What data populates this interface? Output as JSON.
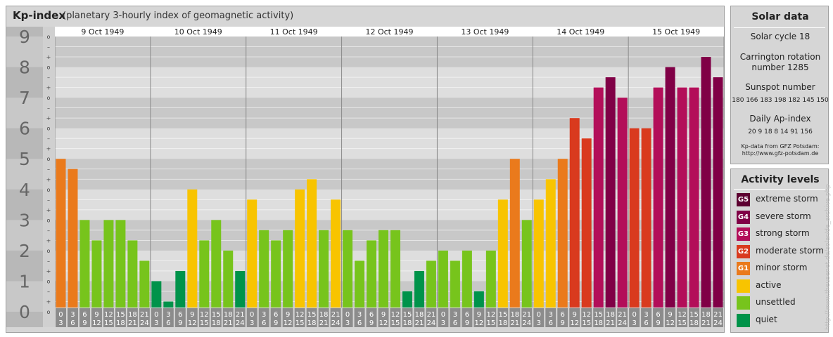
{
  "header": {
    "title": "Kp-index",
    "subtitle": "(planetary 3-hourly index of geomagnetic activity)"
  },
  "chart_data": {
    "type": "bar",
    "days": [
      "9 Oct 1949",
      "10 Oct 1949",
      "11 Oct 1949",
      "12 Oct 1949",
      "13 Oct 1949",
      "14 Oct 1949",
      "15 Oct 1949"
    ],
    "y_ticks": [
      "0",
      "1",
      "2",
      "3",
      "4",
      "5",
      "6",
      "7",
      "8",
      "9"
    ],
    "minor_tick_labels": [
      "o",
      "+",
      "–"
    ],
    "interval_top_labels": [
      "0",
      "3",
      "6",
      "9",
      "12",
      "15",
      "18",
      "21"
    ],
    "interval_bottom_labels": [
      "3",
      "6",
      "9",
      "12",
      "15",
      "18",
      "21",
      "24"
    ],
    "values": [
      5.0,
      4.667,
      3.0,
      2.333,
      3.0,
      3.0,
      2.333,
      1.667,
      1.0,
      0.333,
      1.333,
      4.0,
      2.333,
      3.0,
      2.0,
      1.333,
      3.667,
      2.667,
      2.333,
      2.667,
      4.0,
      4.333,
      2.667,
      3.667,
      2.667,
      1.667,
      2.333,
      2.667,
      2.667,
      0.667,
      1.333,
      1.667,
      2.0,
      1.667,
      2.0,
      0.667,
      2.0,
      3.667,
      5.0,
      3.0,
      3.667,
      4.333,
      5.0,
      6.333,
      5.667,
      7.333,
      7.667,
      7.0,
      6.0,
      6.0,
      7.333,
      8.0,
      7.333,
      7.333,
      8.333,
      7.667
    ],
    "ylim": [
      0,
      9
    ],
    "grid": true,
    "level_colors": {
      "quiet": "#00934a",
      "unsettled": "#77c41c",
      "active": "#f8c400",
      "G1": "#ea7a1c",
      "G2": "#d93a1e",
      "G3": "#b30e59",
      "G4": "#800046",
      "G5": "#5c0030"
    }
  },
  "solar": {
    "title": "Solar data",
    "cycle": "Solar cycle 18",
    "carrington": "Carrington rotation number 1285",
    "sunspot_title": "Sunspot number",
    "sunspot_values": "180 166 183 198 182 145 150",
    "ap_title": "Daily Ap-index",
    "ap_values": "20 9 18 8 14 91 156",
    "source_line1": "Kp-data from GFZ Potsdam:",
    "source_line2": "http://www.gfz-potsdam.de"
  },
  "activity": {
    "title": "Activity levels",
    "items": [
      {
        "code": "G5",
        "label": "extreme storm",
        "color": "#5c0030"
      },
      {
        "code": "G4",
        "label": "severe storm",
        "color": "#800046"
      },
      {
        "code": "G3",
        "label": "strong storm",
        "color": "#b30e59"
      },
      {
        "code": "G2",
        "label": "moderate storm",
        "color": "#d93a1e"
      },
      {
        "code": "G1",
        "label": "minor storm",
        "color": "#ea7a1c"
      },
      {
        "code": "",
        "label": "active",
        "color": "#f8c400"
      },
      {
        "code": "",
        "label": "unsettled",
        "color": "#77c41c"
      },
      {
        "code": "",
        "label": "quiet",
        "color": "#00934a"
      }
    ]
  },
  "credit": "http://www.theusenet.de/solar/de_archive.php"
}
